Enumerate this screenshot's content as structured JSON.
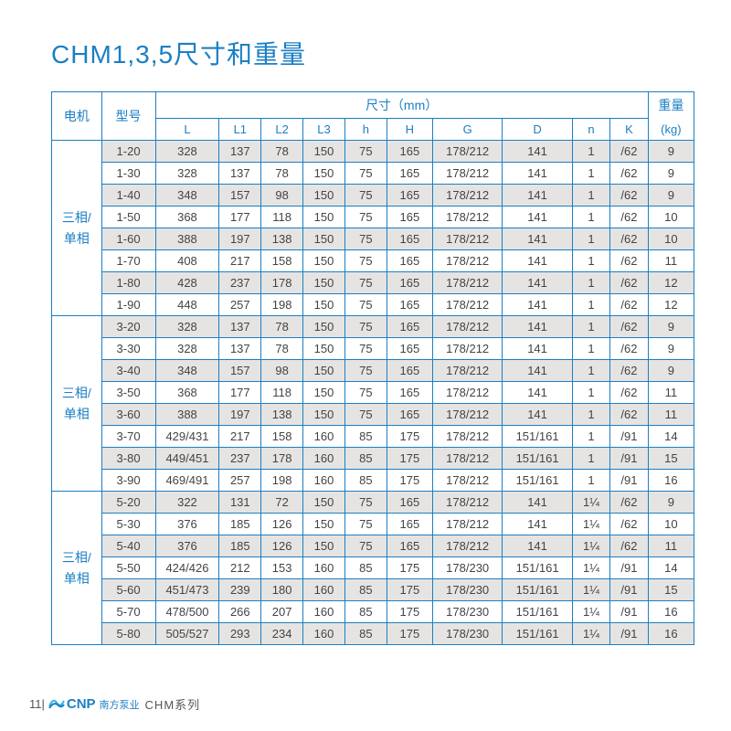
{
  "title": "CHM1,3,5尺寸和重量",
  "colors": {
    "accent": "#1b7fc4",
    "shade": "#e5e4e2",
    "text": "#444",
    "bg": "#ffffff"
  },
  "header": {
    "motor": "电机",
    "model": "型号",
    "dims": "尺寸（mm）",
    "weight_top": "重量",
    "weight_unit": "(kg)",
    "cols": [
      "L",
      "L1",
      "L2",
      "L3",
      "h",
      "H",
      "G",
      "D",
      "n",
      "K"
    ]
  },
  "groups": [
    {
      "label_line1": "三相/",
      "label_line2": "单相",
      "rows": [
        {
          "model": "1-20",
          "L": "328",
          "L1": "137",
          "L2": "78",
          "L3": "150",
          "h": "75",
          "H": "165",
          "G": "178/212",
          "D": "141",
          "n": "1",
          "K": "/62",
          "wt": "9"
        },
        {
          "model": "1-30",
          "L": "328",
          "L1": "137",
          "L2": "78",
          "L3": "150",
          "h": "75",
          "H": "165",
          "G": "178/212",
          "D": "141",
          "n": "1",
          "K": "/62",
          "wt": "9"
        },
        {
          "model": "1-40",
          "L": "348",
          "L1": "157",
          "L2": "98",
          "L3": "150",
          "h": "75",
          "H": "165",
          "G": "178/212",
          "D": "141",
          "n": "1",
          "K": "/62",
          "wt": "9"
        },
        {
          "model": "1-50",
          "L": "368",
          "L1": "177",
          "L2": "118",
          "L3": "150",
          "h": "75",
          "H": "165",
          "G": "178/212",
          "D": "141",
          "n": "1",
          "K": "/62",
          "wt": "10"
        },
        {
          "model": "1-60",
          "L": "388",
          "L1": "197",
          "L2": "138",
          "L3": "150",
          "h": "75",
          "H": "165",
          "G": "178/212",
          "D": "141",
          "n": "1",
          "K": "/62",
          "wt": "10"
        },
        {
          "model": "1-70",
          "L": "408",
          "L1": "217",
          "L2": "158",
          "L3": "150",
          "h": "75",
          "H": "165",
          "G": "178/212",
          "D": "141",
          "n": "1",
          "K": "/62",
          "wt": "11"
        },
        {
          "model": "1-80",
          "L": "428",
          "L1": "237",
          "L2": "178",
          "L3": "150",
          "h": "75",
          "H": "165",
          "G": "178/212",
          "D": "141",
          "n": "1",
          "K": "/62",
          "wt": "12"
        },
        {
          "model": "1-90",
          "L": "448",
          "L1": "257",
          "L2": "198",
          "L3": "150",
          "h": "75",
          "H": "165",
          "G": "178/212",
          "D": "141",
          "n": "1",
          "K": "/62",
          "wt": "12"
        }
      ]
    },
    {
      "label_line1": "三相/",
      "label_line2": "单相",
      "rows": [
        {
          "model": "3-20",
          "L": "328",
          "L1": "137",
          "L2": "78",
          "L3": "150",
          "h": "75",
          "H": "165",
          "G": "178/212",
          "D": "141",
          "n": "1",
          "K": "/62",
          "wt": "9"
        },
        {
          "model": "3-30",
          "L": "328",
          "L1": "137",
          "L2": "78",
          "L3": "150",
          "h": "75",
          "H": "165",
          "G": "178/212",
          "D": "141",
          "n": "1",
          "K": "/62",
          "wt": "9"
        },
        {
          "model": "3-40",
          "L": "348",
          "L1": "157",
          "L2": "98",
          "L3": "150",
          "h": "75",
          "H": "165",
          "G": "178/212",
          "D": "141",
          "n": "1",
          "K": "/62",
          "wt": "9"
        },
        {
          "model": "3-50",
          "L": "368",
          "L1": "177",
          "L2": "118",
          "L3": "150",
          "h": "75",
          "H": "165",
          "G": "178/212",
          "D": "141",
          "n": "1",
          "K": "/62",
          "wt": "11"
        },
        {
          "model": "3-60",
          "L": "388",
          "L1": "197",
          "L2": "138",
          "L3": "150",
          "h": "75",
          "H": "165",
          "G": "178/212",
          "D": "141",
          "n": "1",
          "K": "/62",
          "wt": "11"
        },
        {
          "model": "3-70",
          "L": "429/431",
          "L1": "217",
          "L2": "158",
          "L3": "160",
          "h": "85",
          "H": "175",
          "G": "178/212",
          "D": "151/161",
          "n": "1",
          "K": "/91",
          "wt": "14"
        },
        {
          "model": "3-80",
          "L": "449/451",
          "L1": "237",
          "L2": "178",
          "L3": "160",
          "h": "85",
          "H": "175",
          "G": "178/212",
          "D": "151/161",
          "n": "1",
          "K": "/91",
          "wt": "15"
        },
        {
          "model": "3-90",
          "L": "469/491",
          "L1": "257",
          "L2": "198",
          "L3": "160",
          "h": "85",
          "H": "175",
          "G": "178/212",
          "D": "151/161",
          "n": "1",
          "K": "/91",
          "wt": "16"
        }
      ]
    },
    {
      "label_line1": "三相/",
      "label_line2": "单相",
      "rows": [
        {
          "model": "5-20",
          "L": "322",
          "L1": "131",
          "L2": "72",
          "L3": "150",
          "h": "75",
          "H": "165",
          "G": "178/212",
          "D": "141",
          "n": "1¼",
          "K": "/62",
          "wt": "9"
        },
        {
          "model": "5-30",
          "L": "376",
          "L1": "185",
          "L2": "126",
          "L3": "150",
          "h": "75",
          "H": "165",
          "G": "178/212",
          "D": "141",
          "n": "1¼",
          "K": "/62",
          "wt": "10"
        },
        {
          "model": "5-40",
          "L": "376",
          "L1": "185",
          "L2": "126",
          "L3": "150",
          "h": "75",
          "H": "165",
          "G": "178/212",
          "D": "141",
          "n": "1¼",
          "K": "/62",
          "wt": "11"
        },
        {
          "model": "5-50",
          "L": "424/426",
          "L1": "212",
          "L2": "153",
          "L3": "160",
          "h": "85",
          "H": "175",
          "G": "178/230",
          "D": "151/161",
          "n": "1¼",
          "K": "/91",
          "wt": "14"
        },
        {
          "model": "5-60",
          "L": "451/473",
          "L1": "239",
          "L2": "180",
          "L3": "160",
          "h": "85",
          "H": "175",
          "G": "178/230",
          "D": "151/161",
          "n": "1¼",
          "K": "/91",
          "wt": "15"
        },
        {
          "model": "5-70",
          "L": "478/500",
          "L1": "266",
          "L2": "207",
          "L3": "160",
          "h": "85",
          "H": "175",
          "G": "178/230",
          "D": "151/161",
          "n": "1¼",
          "K": "/91",
          "wt": "16"
        },
        {
          "model": "5-80",
          "L": "505/527",
          "L1": "293",
          "L2": "234",
          "L3": "160",
          "h": "85",
          "H": "175",
          "G": "178/230",
          "D": "151/161",
          "n": "1¼",
          "K": "/91",
          "wt": "16"
        }
      ]
    }
  ],
  "footer": {
    "pagenum": "11|",
    "brand": "CNP",
    "brand_cn": "南方泵业",
    "series": "CHM系列"
  }
}
